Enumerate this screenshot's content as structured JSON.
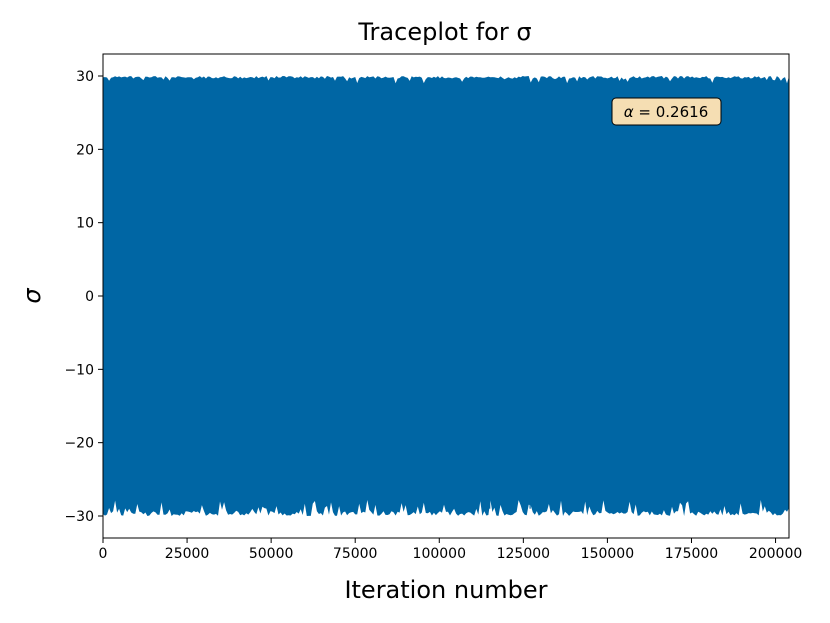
{
  "chart_data": {
    "type": "line",
    "title": "Traceplot for σ",
    "xlabel": "Iteration number",
    "ylabel": "σ",
    "xlim": [
      0,
      204000
    ],
    "ylim": [
      -33,
      33
    ],
    "grid": false,
    "x_ticks": [
      0,
      25000,
      50000,
      75000,
      100000,
      125000,
      150000,
      175000,
      200000
    ],
    "x_tick_labels": [
      "0",
      "25000",
      "50000",
      "75000",
      "100000",
      "125000",
      "150000",
      "175000",
      "200000"
    ],
    "y_ticks": [
      30,
      20,
      10,
      0,
      -10,
      -20,
      -30
    ],
    "y_tick_labels": [
      "30",
      "20",
      "10",
      "0",
      "−10",
      "−20",
      "−30"
    ],
    "series": [
      {
        "color": "#0066a4",
        "n_iterations": 204000,
        "upper_bound": 30,
        "lower_bound": -30,
        "description": "dense trace filling the range from about -30 to 30",
        "low_spikes": [
          {
            "x": 12000,
            "y": -26.3
          },
          {
            "x": 16000,
            "y": -26.5
          },
          {
            "x": 43000,
            "y": -26.5
          },
          {
            "x": 67000,
            "y": -27.2
          },
          {
            "x": 88000,
            "y": -26.5
          },
          {
            "x": 98000,
            "y": -26.2
          },
          {
            "x": 111500,
            "y": -21.8
          },
          {
            "x": 115000,
            "y": -26.7
          },
          {
            "x": 127000,
            "y": -27.8
          },
          {
            "x": 140000,
            "y": -23.0
          },
          {
            "x": 182000,
            "y": -25.2
          },
          {
            "x": 193000,
            "y": -25.8
          }
        ]
      }
    ],
    "annotation": {
      "symbol": "α",
      "equals": " = ",
      "value": "0.2616",
      "text": "α = 0.2616",
      "box_color": "#f5deb3",
      "placement": "upper-right"
    }
  }
}
